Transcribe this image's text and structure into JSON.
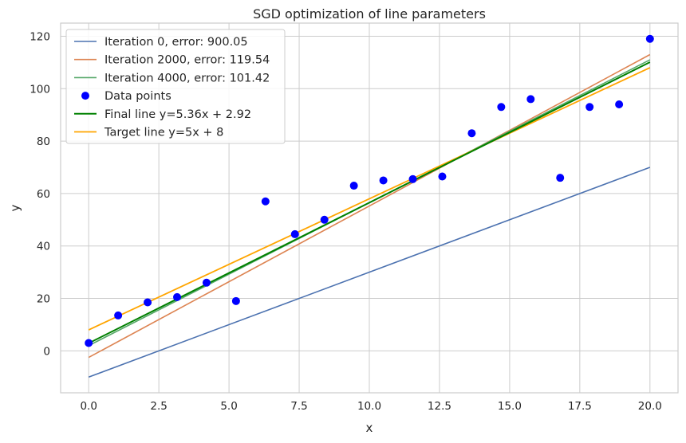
{
  "chart_data": {
    "type": "line",
    "title": "SGD optimization of line parameters",
    "xlabel": "x",
    "ylabel": "y",
    "xlim": [
      -1,
      21
    ],
    "ylim": [
      -16,
      125
    ],
    "xticks": [
      0.0,
      2.5,
      5.0,
      7.5,
      10.0,
      12.5,
      15.0,
      17.5,
      20.0
    ],
    "xtick_labels": [
      "0.0",
      "2.5",
      "5.0",
      "7.5",
      "10.0",
      "12.5",
      "15.0",
      "17.5",
      "20.0"
    ],
    "yticks": [
      0,
      20,
      40,
      60,
      80,
      100,
      120
    ],
    "ytick_labels": [
      "0",
      "20",
      "40",
      "60",
      "80",
      "100",
      "120"
    ],
    "grid": true,
    "legend_position": "top-left",
    "lines": [
      {
        "name": "Iteration 0, error: 900.05",
        "x": [
          0,
          20
        ],
        "y": [
          -10,
          70
        ],
        "color": "#4c72b0",
        "width": 1.6
      },
      {
        "name": "Iteration 2000, error: 119.54",
        "x": [
          0,
          20
        ],
        "y": [
          -2.5,
          113
        ],
        "color": "#dd8452",
        "width": 1.6
      },
      {
        "name": "Iteration 4000, error: 101.42",
        "x": [
          0,
          20
        ],
        "y": [
          2,
          111
        ],
        "color": "#55a868",
        "width": 1.6
      },
      {
        "name": "Final line y=5.36x + 2.92",
        "x": [
          0,
          20
        ],
        "y": [
          2.92,
          110.12
        ],
        "color": "#008000",
        "width": 2
      },
      {
        "name": "Target line y=5x + 8",
        "x": [
          0,
          20
        ],
        "y": [
          8,
          108
        ],
        "color": "#ffa500",
        "width": 1.8
      }
    ],
    "scatter": {
      "name": "Data points",
      "color": "#0000ff",
      "x": [
        0.0,
        1.05,
        2.1,
        3.15,
        4.2,
        5.25,
        6.3,
        7.35,
        8.4,
        9.45,
        10.5,
        11.55,
        12.6,
        13.65,
        14.7,
        15.75,
        16.8,
        17.85,
        18.9,
        20.0
      ],
      "y": [
        3,
        13.5,
        18.5,
        20.5,
        26,
        19,
        57,
        44.5,
        50,
        63,
        65,
        65.5,
        66.5,
        83,
        93,
        96,
        66,
        93,
        94,
        119
      ]
    },
    "legend_order": [
      "Iteration 0, error: 900.05",
      "Iteration 2000, error: 119.54",
      "Iteration 4000, error: 101.42",
      "Data points",
      "Final line y=5.36x + 2.92",
      "Target line y=5x + 8"
    ]
  }
}
